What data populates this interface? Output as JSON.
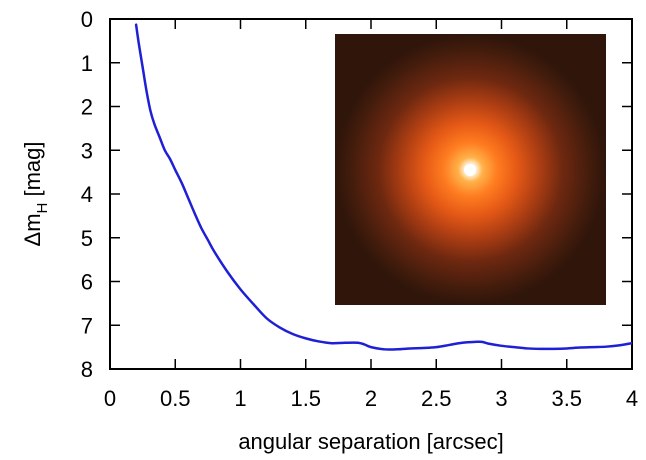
{
  "chart_data": {
    "type": "line",
    "title": "",
    "xlabel": "angular separation [arcsec]",
    "ylabel": {
      "prefix": "Δm",
      "subscript": "H",
      "suffix": " [mag]"
    },
    "xlim": [
      0,
      4
    ],
    "ylim": [
      0,
      8
    ],
    "y_inverted": true,
    "x_ticks": [
      0,
      0.5,
      1,
      1.5,
      2,
      2.5,
      3,
      3.5,
      4
    ],
    "x_tick_labels": [
      "0",
      "0.5",
      "1",
      "1.5",
      "2",
      "2.5",
      "3",
      "3.5",
      "4"
    ],
    "y_ticks": [
      0,
      1,
      2,
      3,
      4,
      5,
      6,
      7,
      8
    ],
    "y_tick_labels": [
      "0",
      "1",
      "2",
      "3",
      "4",
      "5",
      "6",
      "7",
      "8"
    ],
    "grid": false,
    "legend": "none",
    "series": [
      {
        "color": "#1f1fd6",
        "x": [
          0.2,
          0.22,
          0.25,
          0.28,
          0.31,
          0.34,
          0.38,
          0.42,
          0.46,
          0.5,
          0.55,
          0.6,
          0.65,
          0.7,
          0.75,
          0.8,
          0.9,
          1.0,
          1.1,
          1.2,
          1.3,
          1.4,
          1.5,
          1.6,
          1.7,
          1.8,
          1.9,
          1.95,
          2.0,
          2.1,
          2.2,
          2.3,
          2.4,
          2.5,
          2.6,
          2.7,
          2.8,
          2.85,
          2.9,
          3.0,
          3.1,
          3.2,
          3.3,
          3.4,
          3.5,
          3.6,
          3.7,
          3.8,
          3.9,
          4.0
        ],
        "y": [
          0.13,
          0.55,
          1.1,
          1.65,
          2.1,
          2.4,
          2.7,
          3.0,
          3.2,
          3.45,
          3.75,
          4.1,
          4.45,
          4.78,
          5.05,
          5.32,
          5.78,
          6.18,
          6.52,
          6.84,
          7.05,
          7.2,
          7.3,
          7.37,
          7.41,
          7.4,
          7.4,
          7.44,
          7.5,
          7.55,
          7.55,
          7.53,
          7.52,
          7.5,
          7.45,
          7.4,
          7.38,
          7.38,
          7.42,
          7.47,
          7.5,
          7.53,
          7.54,
          7.54,
          7.53,
          7.51,
          7.5,
          7.49,
          7.46,
          7.41
        ]
      }
    ],
    "inset": {
      "type": "image",
      "description_color_background": "#3a1a0c",
      "description_color_core": "#ffffff"
    }
  }
}
